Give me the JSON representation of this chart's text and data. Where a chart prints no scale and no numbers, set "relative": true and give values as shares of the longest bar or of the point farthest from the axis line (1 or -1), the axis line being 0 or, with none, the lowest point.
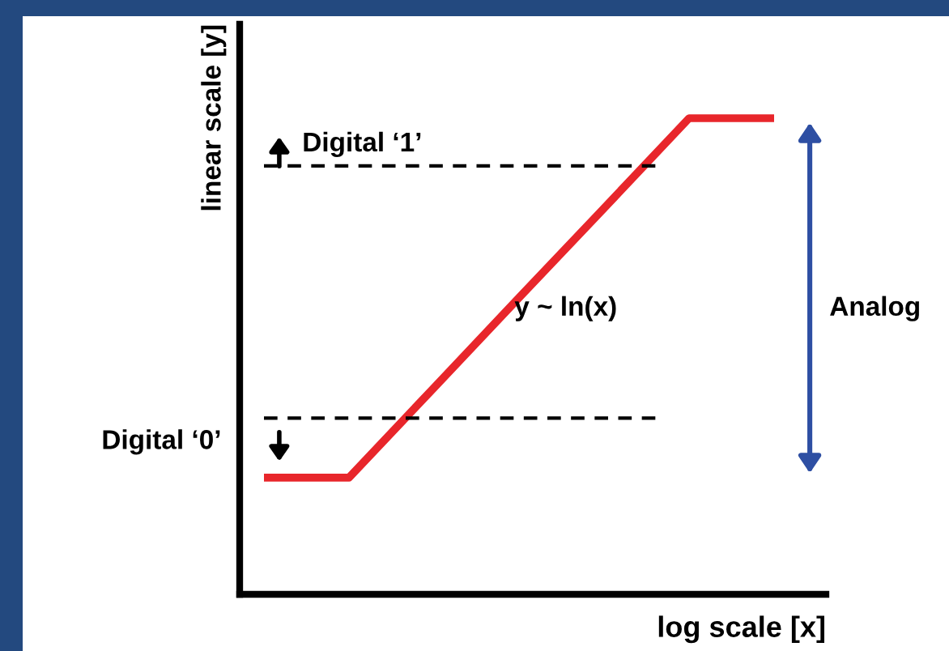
{
  "chart_data": {
    "type": "line",
    "relative": true,
    "xlabel": "log scale [x]",
    "ylabel": "linear scale [y]",
    "categories": [
      null,
      null,
      null,
      null,
      null,
      null,
      null
    ],
    "series": [
      {
        "color": "#e8262b",
        "values": [
          0.245,
          0.245,
          0.434,
          0.623,
          0.811,
          1,
          1
        ]
      }
    ],
    "ref_lines": [
      {
        "axis": "y",
        "value": 0.9,
        "label": "Digital ‘1’",
        "color": "#000000",
        "line_style": "dashed"
      },
      {
        "axis": "y",
        "value": 0.37,
        "label": "Digital ‘0’",
        "color": "#000000",
        "line_style": "dashed"
      }
    ],
    "annotations": [
      "y ~ ln(x)",
      "Analog"
    ],
    "grid": false,
    "legend": false,
    "marker": "none",
    "line_style": "solid"
  }
}
